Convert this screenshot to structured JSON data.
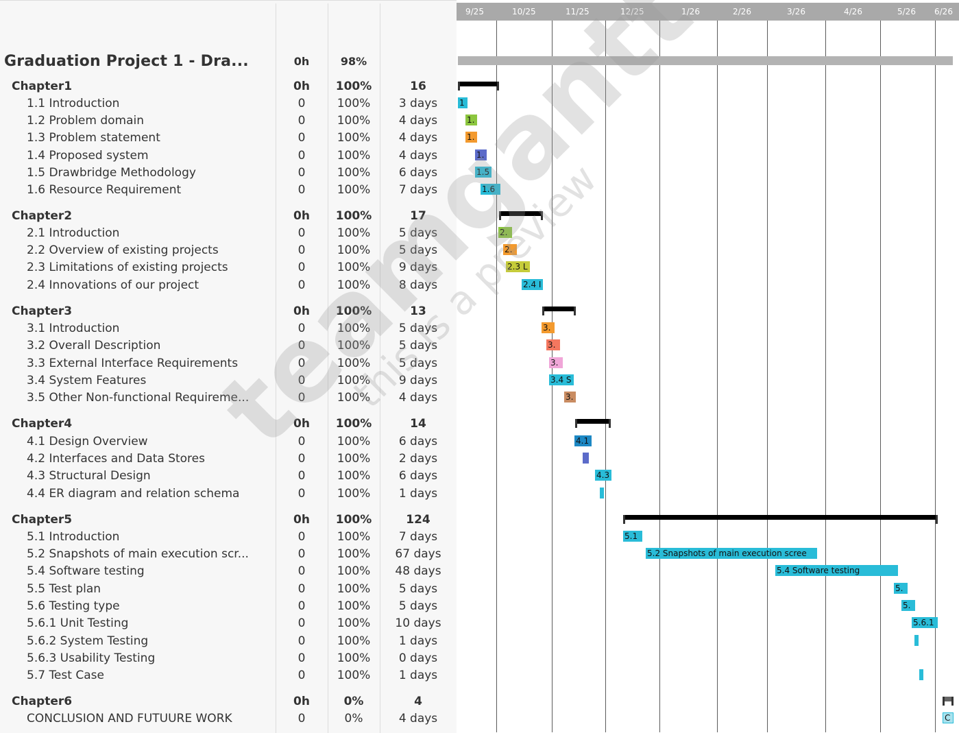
{
  "timescale": {
    "ticks": [
      "9/25",
      "10/25",
      "11/25",
      "12/25",
      "1/26",
      "2/26",
      "3/26",
      "4/26",
      "5/26",
      "6/26"
    ]
  },
  "watermark": {
    "brand": "teamgantt",
    "subtitle": "this is a preview"
  },
  "rows": [
    {
      "type": "project",
      "name": "Graduation Project 1 - Dra...",
      "hours": "0h",
      "percent": "98%",
      "duration": ""
    },
    {
      "type": "summary",
      "name": "Chapter1",
      "hours": "0h",
      "percent": "100%",
      "duration": "16"
    },
    {
      "type": "task",
      "name": "1.1  Introduction",
      "hours": "0",
      "percent": "100%",
      "duration": "3 days",
      "bar_label": "1",
      "color": "#29bcd8"
    },
    {
      "type": "task",
      "name": "1.2 Problem domain",
      "hours": "0",
      "percent": "100%",
      "duration": "4 days",
      "bar_label": "1.",
      "color": "#8cc63f"
    },
    {
      "type": "task",
      "name": "1.3 Problem statement",
      "hours": "0",
      "percent": "100%",
      "duration": "4 days",
      "bar_label": "1.",
      "color": "#f39a2e"
    },
    {
      "type": "task",
      "name": "1.4 Proposed system",
      "hours": "0",
      "percent": "100%",
      "duration": "4 days",
      "bar_label": "1.",
      "color": "#5c6bc9"
    },
    {
      "type": "task",
      "name": "1.5 Drawbridge Methodology",
      "hours": "0",
      "percent": "100%",
      "duration": "6 days",
      "bar_label": "1.5",
      "color": "#29bcd8"
    },
    {
      "type": "task",
      "name": "1.6 Resource Requirement",
      "hours": "0",
      "percent": "100%",
      "duration": "7 days",
      "bar_label": "1.6",
      "color": "#29bcd8"
    },
    {
      "type": "summary",
      "name": "Chapter2",
      "hours": "0h",
      "percent": "100%",
      "duration": "17"
    },
    {
      "type": "task",
      "name": "2.1 Introduction",
      "hours": "0",
      "percent": "100%",
      "duration": "5 days",
      "bar_label": "2.",
      "color": "#8cc63f"
    },
    {
      "type": "task",
      "name": "2.2 Overview of existing projects",
      "hours": "0",
      "percent": "100%",
      "duration": "5 days",
      "bar_label": "2.",
      "color": "#f39a2e"
    },
    {
      "type": "task",
      "name": "2.3 Limitations of existing projects",
      "hours": "0",
      "percent": "100%",
      "duration": "9 days",
      "bar_label": "2.3 L",
      "color": "#c6cc3a"
    },
    {
      "type": "task",
      "name": "2.4 Innovations of our project",
      "hours": "0",
      "percent": "100%",
      "duration": "8 days",
      "bar_label": "2.4 I",
      "color": "#29bcd8"
    },
    {
      "type": "summary",
      "name": "Chapter3",
      "hours": "0h",
      "percent": "100%",
      "duration": "13"
    },
    {
      "type": "task",
      "name": "3.1 Introduction",
      "hours": "0",
      "percent": "100%",
      "duration": "5 days",
      "bar_label": "3.",
      "color": "#f39a2e"
    },
    {
      "type": "task",
      "name": "3.2  Overall Description",
      "hours": "0",
      "percent": "100%",
      "duration": "5 days",
      "bar_label": "3.",
      "color": "#f4775f"
    },
    {
      "type": "task",
      "name": "3.3 External Interface Requirements",
      "hours": "0",
      "percent": "100%",
      "duration": "5 days",
      "bar_label": "3.",
      "color": "#f0a6d8"
    },
    {
      "type": "task",
      "name": "3.4 System Features",
      "hours": "0",
      "percent": "100%",
      "duration": "9 days",
      "bar_label": "3.4 S",
      "color": "#29bcd8"
    },
    {
      "type": "task",
      "name": "3.5  Other Non-functional Requireme...",
      "hours": "0",
      "percent": "100%",
      "duration": "4 days",
      "bar_label": "3.",
      "color": "#c98c62"
    },
    {
      "type": "summary",
      "name": "Chapter4",
      "hours": "0h",
      "percent": "100%",
      "duration": "14"
    },
    {
      "type": "task",
      "name": "4.1 Design Overview",
      "hours": "0",
      "percent": "100%",
      "duration": "6 days",
      "bar_label": "4.1",
      "color": "#1d88c4"
    },
    {
      "type": "task",
      "name": "4.2 Interfaces and Data Stores",
      "hours": "0",
      "percent": "100%",
      "duration": "2 days",
      "bar_label": "",
      "color": "#5c6bc9"
    },
    {
      "type": "task",
      "name": "4.3 Structural Design",
      "hours": "0",
      "percent": "100%",
      "duration": "6 days",
      "bar_label": "4.3",
      "color": "#29bcd8"
    },
    {
      "type": "task",
      "name": "4.4 ER diagram and relation schema",
      "hours": "0",
      "percent": "100%",
      "duration": "1 days",
      "bar_label": "",
      "color": "#29bcd8"
    },
    {
      "type": "summary",
      "name": "Chapter5",
      "hours": "0h",
      "percent": "100%",
      "duration": "124"
    },
    {
      "type": "task",
      "name": "5.1 Introduction",
      "hours": "0",
      "percent": "100%",
      "duration": "7 days",
      "bar_label": "5.1",
      "color": "#29bcd8"
    },
    {
      "type": "task",
      "name": "5.2 Snapshots of main execution scr...",
      "hours": "0",
      "percent": "100%",
      "duration": "67 days",
      "bar_label": "5.2 Snapshots of main execution scree",
      "color": "#29bcd8"
    },
    {
      "type": "task",
      "name": "5.4 Software testing",
      "hours": "0",
      "percent": "100%",
      "duration": "48 days",
      "bar_label": "5.4 Software testing",
      "color": "#29bcd8"
    },
    {
      "type": "task",
      "name": "5.5 Test plan",
      "hours": "0",
      "percent": "100%",
      "duration": "5 days",
      "bar_label": "5.",
      "color": "#29bcd8"
    },
    {
      "type": "task",
      "name": "5.6 Testing type",
      "hours": "0",
      "percent": "100%",
      "duration": "5 days",
      "bar_label": "5.",
      "color": "#29bcd8"
    },
    {
      "type": "task",
      "name": "5.6.1  Unit Testing",
      "hours": "0",
      "percent": "100%",
      "duration": "10 days",
      "bar_label": "5.6.1",
      "color": "#29bcd8"
    },
    {
      "type": "task",
      "name": "5.6.2 System Testing",
      "hours": "0",
      "percent": "100%",
      "duration": "1 days",
      "bar_label": "",
      "color": "#29bcd8"
    },
    {
      "type": "task",
      "name": "5.6.3  Usability Testing",
      "hours": "0",
      "percent": "100%",
      "duration": "0 days",
      "bar_label": "",
      "color": "#29bcd8"
    },
    {
      "type": "task",
      "name": "5.7 Test Case",
      "hours": "0",
      "percent": "100%",
      "duration": "1 days",
      "bar_label": "",
      "color": "#29bcd8"
    },
    {
      "type": "summary",
      "name": "Chapter6",
      "hours": "0h",
      "percent": "0%",
      "duration": "4"
    },
    {
      "type": "task",
      "name": "CONCLUSION AND FUTUURE WORK",
      "hours": "0",
      "percent": "0%",
      "duration": "4 days",
      "bar_label": "C",
      "color": "#a8e2ee"
    }
  ]
}
